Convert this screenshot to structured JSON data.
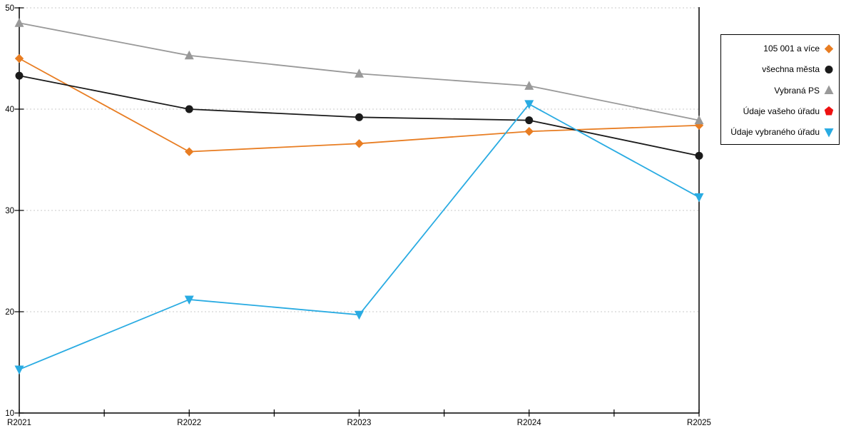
{
  "chart_data": {
    "type": "line",
    "title": "",
    "xlabel": "",
    "ylabel": "",
    "x_categories": [
      "R2021",
      "R2022",
      "R2023",
      "R2024",
      "R2025"
    ],
    "y_ticks": [
      10,
      20,
      30,
      40,
      50
    ],
    "ylim": [
      10,
      50
    ],
    "grid": "horizontal-dashed",
    "grid_color": "#c9c9c9",
    "axis_color": "#000000",
    "legend_position": "right",
    "series": [
      {
        "name": "105 001 a více",
        "marker": "diamond",
        "color": "#E87D22",
        "values": [
          45.0,
          35.8,
          36.6,
          37.8,
          38.4
        ]
      },
      {
        "name": "všechna města",
        "marker": "circle",
        "color": "#1A1A1A",
        "values": [
          43.3,
          40.0,
          39.2,
          38.9,
          35.4
        ]
      },
      {
        "name": "Vybraná PS",
        "marker": "triangle-up",
        "color": "#999999",
        "values": [
          48.5,
          45.3,
          43.5,
          42.3,
          38.9
        ]
      },
      {
        "name": "Údaje vašeho úřadu",
        "marker": "pentagon",
        "color": "#EE1111",
        "values": [
          null,
          null,
          null,
          null,
          null
        ]
      },
      {
        "name": "Údaje vybraného úřadu",
        "marker": "triangle-down",
        "color": "#29ABE2",
        "values": [
          14.3,
          21.2,
          19.7,
          40.5,
          31.3
        ]
      }
    ]
  }
}
